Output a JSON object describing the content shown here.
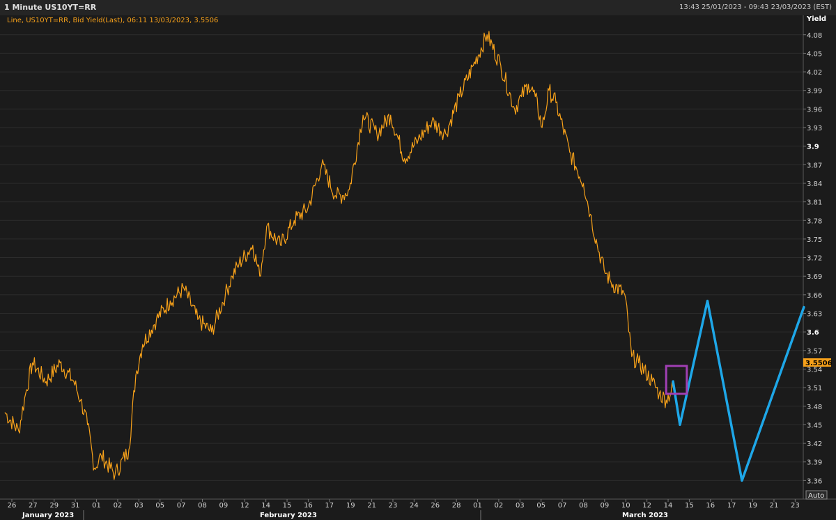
{
  "header": {
    "title": "1 Minute US10YT=RR",
    "range": "13:43 25/01/2023 - 09:43 23/03/2023 (EST)"
  },
  "colors": {
    "background": "#1b1b1b",
    "series": "#f7a11a",
    "forecast": "#1ea7e8",
    "marker": "#a03fb3",
    "last_tag": "#f7a11a"
  },
  "chart_data": {
    "type": "line",
    "legend_text": "Line, US10YT=RR, Bid Yield(Last), 06:11 13/03/2023, 3.5506",
    "ylabel": "Yield",
    "ylim": [
      3.33,
      4.1
    ],
    "y_ticks": [
      "4.08",
      "4.05",
      "4.02",
      "3.99",
      "3.96",
      "3.93",
      "3.9",
      "3.87",
      "3.84",
      "3.81",
      "3.78",
      "3.75",
      "3.72",
      "3.69",
      "3.66",
      "3.63",
      "3.6",
      "3.57",
      "3.54",
      "3.51",
      "3.48",
      "3.45",
      "3.42",
      "3.39",
      "3.36"
    ],
    "y_tick_bold": [
      "3.9",
      "3.6"
    ],
    "x_ticks": [
      "26",
      "27",
      "29",
      "31",
      "01",
      "02",
      "03",
      "05",
      "07",
      "08",
      "09",
      "12",
      "14",
      "15",
      "16",
      "17",
      "19",
      "21",
      "23",
      "24",
      "26",
      "28",
      "01",
      "02",
      "03",
      "05",
      "07",
      "08",
      "09",
      "10",
      "12",
      "14",
      "15",
      "16",
      "17",
      "19",
      "21",
      "23"
    ],
    "months": [
      {
        "label": "January 2023"
      },
      {
        "label": "February 2023"
      },
      {
        "label": "March 2023"
      }
    ],
    "last_value": "3.5506",
    "auto_label": "Auto",
    "series": [
      {
        "x": [
          0,
          1,
          1.5,
          2,
          3,
          4,
          5,
          5.5,
          6,
          6.5,
          7,
          8,
          9,
          9.5,
          9.8,
          10,
          11,
          12,
          13,
          14,
          15,
          16,
          16.5,
          17,
          18,
          18.5,
          19,
          20,
          21,
          22,
          23,
          24,
          24.5,
          25,
          26,
          27,
          28,
          29,
          30,
          31,
          32,
          33,
          34,
          35,
          36,
          37,
          37.5,
          38,
          38.5,
          39,
          39.5,
          40,
          41,
          42,
          42.5,
          43,
          43.5,
          44,
          45,
          45.5,
          46,
          47,
          47.5,
          48,
          48.5
        ],
        "values": [
          3.47,
          3.44,
          3.5,
          3.55,
          3.52,
          3.55,
          3.52,
          3.49,
          3.45,
          3.38,
          3.4,
          3.37,
          3.41,
          3.53,
          3.56,
          3.58,
          3.62,
          3.65,
          3.67,
          3.62,
          3.6,
          3.66,
          3.69,
          3.71,
          3.74,
          3.69,
          3.77,
          3.74,
          3.78,
          3.8,
          3.87,
          3.82,
          3.82,
          3.83,
          3.95,
          3.92,
          3.95,
          3.88,
          3.91,
          3.94,
          3.92,
          3.98,
          4.03,
          4.08,
          4.03,
          3.96,
          3.98,
          4.0,
          3.98,
          3.93,
          3.99,
          3.97,
          3.89,
          3.84,
          3.79,
          3.74,
          3.7,
          3.68,
          3.66,
          3.56,
          3.55,
          3.52,
          3.5,
          3.49,
          3.51
        ]
      },
      {
        "values_note": "",
        "x": [
          48.5,
          49,
          51,
          53.5,
          58
        ],
        "values": [
          3.52,
          3.45,
          3.65,
          3.36,
          3.64
        ]
      }
    ],
    "annotation_box": {
      "x": [
        48,
        49.5
      ],
      "y": [
        3.5,
        3.545
      ]
    }
  }
}
